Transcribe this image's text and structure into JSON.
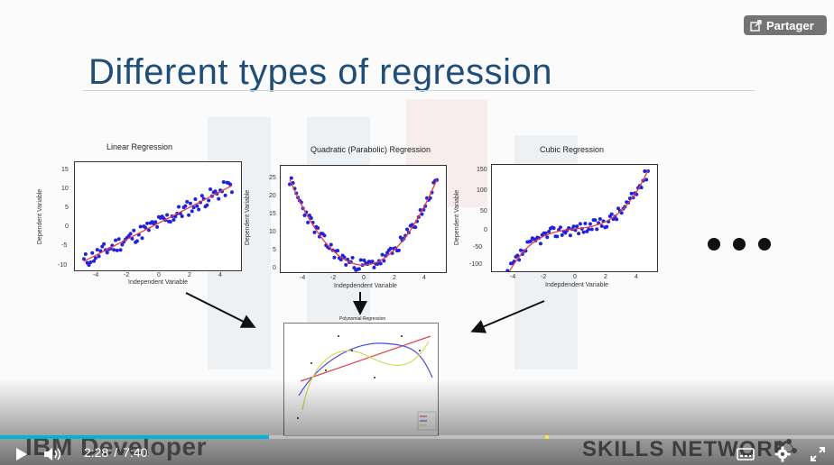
{
  "slide": {
    "title": "Different types of regression",
    "ellipsis_icon": "ellipsis-icon"
  },
  "share": {
    "label": "Partager",
    "icon": "share-icon"
  },
  "plots": {
    "linear": {
      "title": "Linear Regression",
      "xlabel": "Independent Variable",
      "ylabel": "Dependent Variable",
      "xticks": [
        "-4",
        "-2",
        "0",
        "2",
        "4"
      ],
      "yticks": [
        "15",
        "10",
        "5",
        "0",
        "-5",
        "-10"
      ]
    },
    "quadratic": {
      "title": "Quadratic (Parabolic) Regression",
      "xlabel": "Indepdendent Variable",
      "ylabel": "Dependent Variable",
      "xticks": [
        "-4",
        "-2",
        "0",
        "2",
        "4"
      ],
      "yticks": [
        "25",
        "20",
        "15",
        "10",
        "5",
        "0"
      ]
    },
    "cubic": {
      "title": "Cubic Regression",
      "xlabel": "Indepdendent Variable",
      "ylabel": "Dependent Variable",
      "xticks": [
        "-4",
        "-2",
        "0",
        "2",
        "4"
      ],
      "yticks": [
        "150",
        "100",
        "50",
        "0",
        "-50",
        "-100"
      ]
    },
    "polynomial": {
      "title": "Polynomial Regression"
    }
  },
  "branding": {
    "left": "IBM Developer",
    "right": "SKILLS NETWORK"
  },
  "player": {
    "current_time": "2:28",
    "separator": "/",
    "duration": "7:40",
    "progress_fraction": 0.322,
    "colors": {
      "played": "#00b4d8",
      "marker": "#ffe14d"
    },
    "icons": [
      "play-icon",
      "volume-icon",
      "captions-icon",
      "settings-icon",
      "fullscreen-icon"
    ]
  }
}
